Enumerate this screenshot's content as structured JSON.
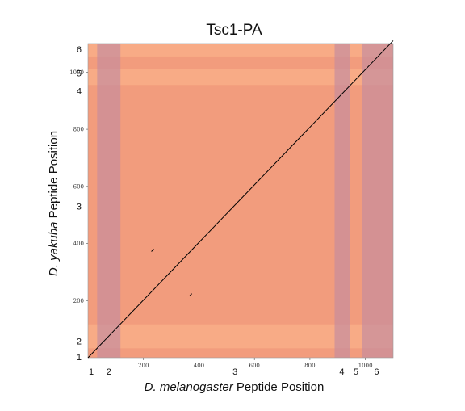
{
  "chart_data": {
    "type": "scatter",
    "title": "Tsc1-PA",
    "xlabel": {
      "italic": "D. melanogaster",
      "rest": " Peptide Position"
    },
    "ylabel": {
      "italic": "D. yakuba",
      "rest": " Peptide Position"
    },
    "xlim": [
      0,
      1100
    ],
    "ylim": [
      0,
      1100
    ],
    "x_ticks": [
      {
        "value": 200,
        "label": "200"
      },
      {
        "value": 400,
        "label": "400"
      },
      {
        "value": 600,
        "label": "600"
      },
      {
        "value": 800,
        "label": "800"
      },
      {
        "value": 1000,
        "label": "1000"
      }
    ],
    "y_ticks": [
      {
        "value": 200,
        "label": "200"
      },
      {
        "value": 400,
        "label": "400"
      },
      {
        "value": 600,
        "label": "600"
      },
      {
        "value": 800,
        "label": "800"
      },
      {
        "value": 1000,
        "label": "1000"
      }
    ],
    "x_exons": [
      {
        "label": "1",
        "start": 0,
        "end": 33,
        "color": "#f7a27a"
      },
      {
        "label": "2",
        "start": 33,
        "end": 117,
        "color": "#c98d9b"
      },
      {
        "label": "3",
        "start": 117,
        "end": 889,
        "color": "#f7a27a"
      },
      {
        "label": "4",
        "start": 889,
        "end": 944,
        "color": "#c98d9b"
      },
      {
        "label": "5",
        "start": 944,
        "end": 989,
        "color": "#f7a27a"
      },
      {
        "label": "6",
        "start": 989,
        "end": 1100,
        "color": "#c98d9b"
      }
    ],
    "y_exons": [
      {
        "label": "1",
        "start": 0,
        "end": 33,
        "color": "#f09a80"
      },
      {
        "label": "2",
        "start": 33,
        "end": 117,
        "color": "#f7b08d"
      },
      {
        "label": "3",
        "start": 117,
        "end": 955,
        "color": "#f09a80"
      },
      {
        "label": "4",
        "start": 955,
        "end": 1010,
        "color": "#f7b08d"
      },
      {
        "label": "5",
        "start": 1010,
        "end": 1055,
        "color": "#f09a80"
      },
      {
        "label": "6",
        "start": 1055,
        "end": 1110,
        "color": "#f7b08d"
      }
    ],
    "x_exon_label_positions": [
      {
        "label": "1",
        "value": 12
      },
      {
        "label": "2",
        "value": 75
      },
      {
        "label": "3",
        "value": 530
      },
      {
        "label": "4",
        "value": 915
      },
      {
        "label": "5",
        "value": 966
      },
      {
        "label": "6",
        "value": 1040
      }
    ],
    "y_exon_label_positions": [
      {
        "label": "1",
        "value": 3
      },
      {
        "label": "2",
        "value": 58
      },
      {
        "label": "3",
        "value": 530
      },
      {
        "label": "4",
        "value": 935
      },
      {
        "label": "5",
        "value": 997
      },
      {
        "label": "6",
        "value": 1080
      }
    ],
    "diagonal": {
      "x0": 0,
      "y0": 0,
      "x1": 1100,
      "y1": 1110
    },
    "extra_points": [
      {
        "x": 233,
        "y": 376
      },
      {
        "x": 370,
        "y": 220
      }
    ],
    "colors": {
      "background": "#f79c73",
      "band": "#f7b99a",
      "band_alt": "#f28a7b",
      "cross": "#c990a4",
      "diagonal": "#000000",
      "frame": "#999999"
    }
  }
}
